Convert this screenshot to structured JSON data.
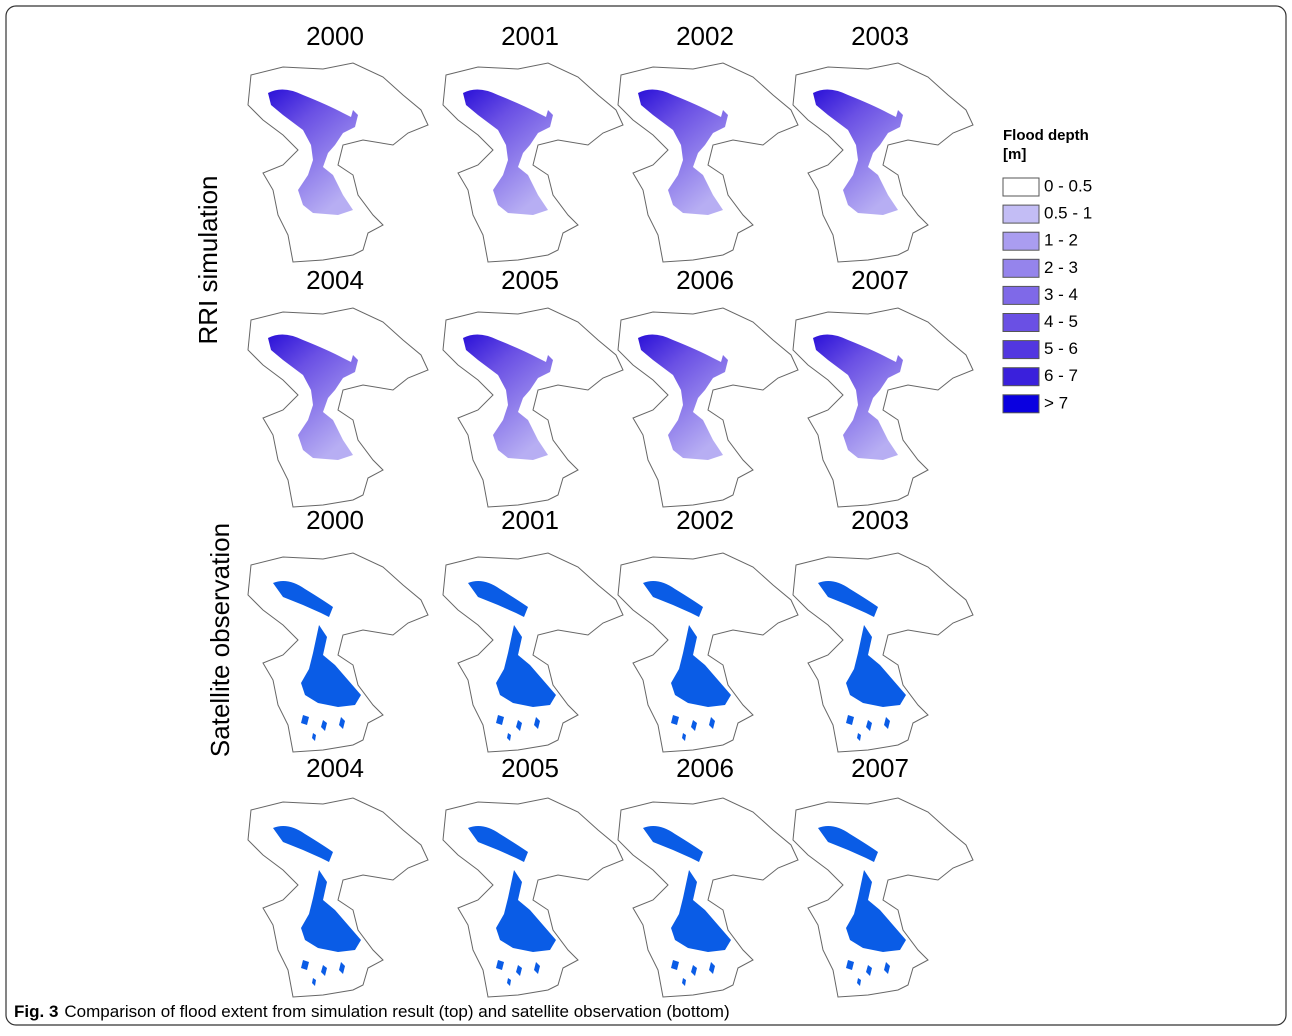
{
  "panels": {
    "row_labels": [
      "RRI simulation",
      "Satellite observation"
    ],
    "simulation_years": [
      "2000",
      "2001",
      "2002",
      "2003",
      "2004",
      "2005",
      "2006",
      "2007"
    ],
    "observation_years": [
      "2000",
      "2001",
      "2002",
      "2003",
      "2004",
      "2005",
      "2006",
      "2007"
    ]
  },
  "legend": {
    "title": "Flood depth",
    "unit": "[m]",
    "items": [
      {
        "label": "0 - 0.5",
        "color": "#ffffff"
      },
      {
        "label": "0.5 - 1",
        "color": "#c3bdf5"
      },
      {
        "label": "1 - 2",
        "color": "#aa9df0"
      },
      {
        "label": "2 - 3",
        "color": "#9584ec"
      },
      {
        "label": "3 - 4",
        "color": "#7f69e8"
      },
      {
        "label": "4 - 5",
        "color": "#6a50e4"
      },
      {
        "label": "5 - 6",
        "color": "#5237e0"
      },
      {
        "label": "6 - 7",
        "color": "#3a20dc"
      },
      {
        "label": "> 7",
        "color": "#0a00e0"
      }
    ]
  },
  "caption": {
    "label": "Fig. 3",
    "text": "Comparison of flood extent from simulation result (top) and satellite observation (bottom)"
  }
}
